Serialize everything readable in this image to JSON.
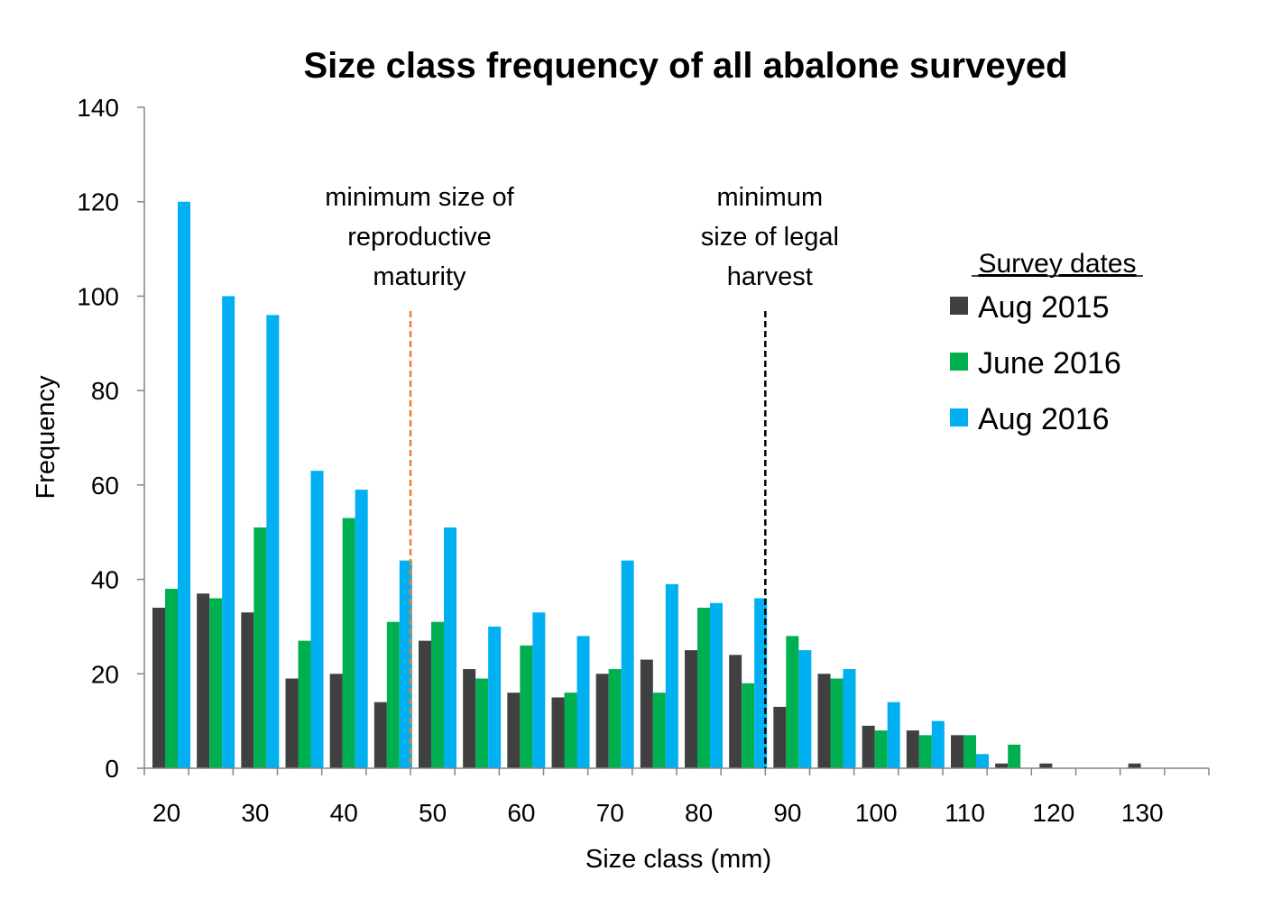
{
  "chart_data": {
    "type": "bar",
    "title": "Size class frequency of all abalone surveyed",
    "xlabel": "Size class (mm)",
    "ylabel": "Frequency",
    "ylim": [
      0,
      140
    ],
    "y_ticks": [
      "0",
      "20",
      "40",
      "60",
      "80",
      "100",
      "120",
      "140"
    ],
    "x_tick_labels": [
      "20",
      "30",
      "40",
      "50",
      "60",
      "70",
      "80",
      "90",
      "100",
      "110",
      "120",
      "130"
    ],
    "categories": [
      "20",
      "25",
      "30",
      "35",
      "40",
      "45",
      "50",
      "55",
      "60",
      "65",
      "70",
      "75",
      "80",
      "85",
      "90",
      "95",
      "100",
      "105",
      "110",
      "115",
      "120",
      "125",
      "130",
      "135"
    ],
    "series": [
      {
        "name": "Aug 2015",
        "color": "#404040",
        "values": [
          34,
          37,
          33,
          19,
          20,
          14,
          27,
          21,
          16,
          15,
          20,
          23,
          25,
          24,
          13,
          20,
          9,
          8,
          7,
          1,
          1,
          0,
          1,
          0
        ]
      },
      {
        "name": "June 2016",
        "color": "#00b050",
        "values": [
          38,
          36,
          51,
          27,
          53,
          31,
          31,
          19,
          26,
          16,
          21,
          16,
          34,
          18,
          28,
          19,
          8,
          7,
          7,
          5,
          0,
          0,
          0,
          0
        ]
      },
      {
        "name": "Aug 2016",
        "color": "#00b0f0",
        "values": [
          120,
          100,
          96,
          63,
          59,
          44,
          51,
          30,
          33,
          28,
          44,
          39,
          35,
          36,
          25,
          21,
          14,
          10,
          3,
          0,
          0,
          0,
          0,
          0
        ]
      }
    ],
    "reference_lines": [
      {
        "label_lines": [
          "minimum size of",
          "reproductive",
          "maturity"
        ],
        "x": 47.5,
        "color": "#ed7d31"
      },
      {
        "label_lines": [
          "minimum",
          "size of legal",
          "harvest"
        ],
        "x": 87.5,
        "color": "#000000"
      }
    ],
    "legend": {
      "title": "Survey dates",
      "position": "right"
    },
    "grid": false
  }
}
